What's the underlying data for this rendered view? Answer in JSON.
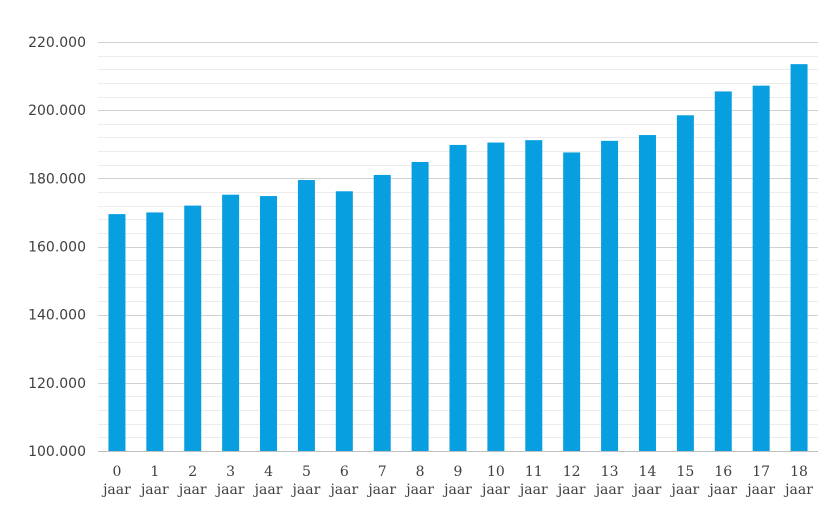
{
  "chart_data": {
    "type": "bar",
    "title": "",
    "xlabel": "",
    "ylabel": "",
    "categories": [
      [
        "0",
        "jaar"
      ],
      [
        "1",
        "jaar"
      ],
      [
        "2",
        "jaar"
      ],
      [
        "3",
        "jaar"
      ],
      [
        "4",
        "jaar"
      ],
      [
        "5",
        "jaar"
      ],
      [
        "6",
        "jaar"
      ],
      [
        "7",
        "jaar"
      ],
      [
        "8",
        "jaar"
      ],
      [
        "9",
        "jaar"
      ],
      [
        "10",
        "jaar"
      ],
      [
        "11",
        "jaar"
      ],
      [
        "12",
        "jaar"
      ],
      [
        "13",
        "jaar"
      ],
      [
        "14",
        "jaar"
      ],
      [
        "15",
        "jaar"
      ],
      [
        "16",
        "jaar"
      ],
      [
        "17",
        "jaar"
      ],
      [
        "18",
        "jaar"
      ]
    ],
    "values": [
      169500,
      170000,
      172000,
      175200,
      174800,
      179500,
      176200,
      181000,
      184800,
      189800,
      190500,
      191200,
      187600,
      191000,
      192700,
      198500,
      205500,
      207200,
      213500
    ],
    "ylim": [
      100000,
      220000
    ],
    "y_ticks": [
      100000,
      120000,
      140000,
      160000,
      180000,
      200000,
      220000
    ],
    "y_tick_labels": [
      "100.000",
      "120.000",
      "140.000",
      "160.000",
      "180.000",
      "200.000",
      "220.000"
    ],
    "y_minor_step": 4000,
    "grid": true,
    "legend": "none",
    "colors": {
      "bar": "#079fdf"
    }
  }
}
